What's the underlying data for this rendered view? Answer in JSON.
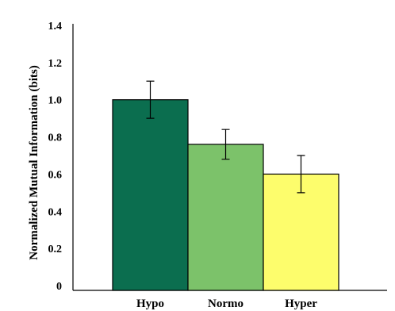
{
  "chart_data": {
    "type": "bar",
    "categories": [
      "Hypo",
      "Normo",
      "Hyper"
    ],
    "values": [
      1.0,
      0.76,
      0.6
    ],
    "errors": [
      0.1,
      0.08,
      0.1
    ],
    "colors": [
      "#0b6e4f",
      "#7cc26a",
      "#fdfd6c"
    ],
    "ylabel": "Normalized Mutual Information (bits)",
    "ylim": [
      0,
      1.4
    ],
    "yticks": [
      0,
      0.2,
      0.4,
      0.6,
      0.8,
      1.0,
      1.2,
      1.4
    ],
    "ytick_labels": [
      "0",
      "0.2",
      "0.4",
      "0.6",
      "0.8",
      "1.0",
      "1.2",
      "1.4"
    ],
    "grid": false
  }
}
